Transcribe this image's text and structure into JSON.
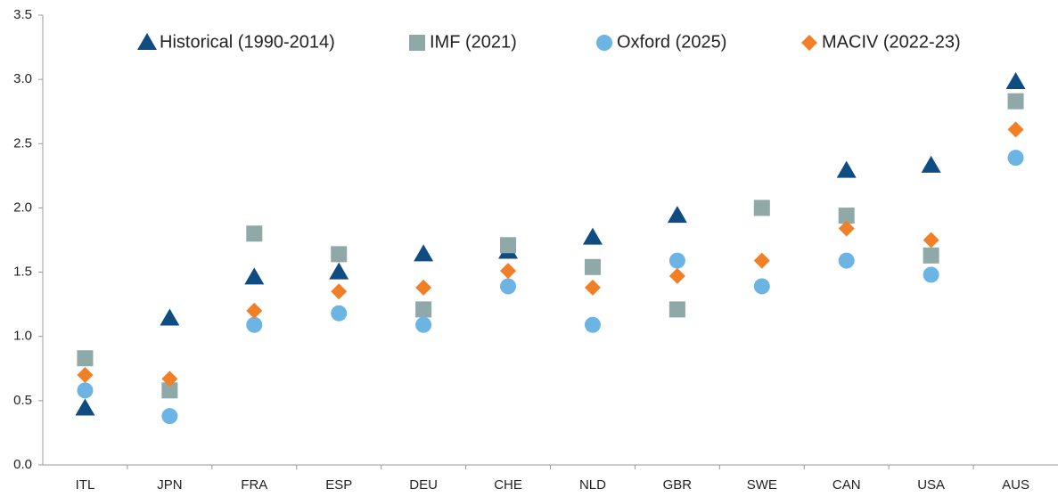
{
  "chart_data": {
    "type": "scatter",
    "categories": [
      "ITL",
      "JPN",
      "FRA",
      "ESP",
      "DEU",
      "CHE",
      "NLD",
      "GBR",
      "SWE",
      "CAN",
      "USA",
      "AUS"
    ],
    "series": [
      {
        "name": "Historical (1990-2014)",
        "color": "#0f4c81",
        "marker": "triangle",
        "values": [
          0.44,
          1.14,
          1.46,
          1.5,
          1.64,
          1.66,
          1.77,
          1.94,
          null,
          2.29,
          2.33,
          2.98
        ]
      },
      {
        "name": "IMF (2021)",
        "color": "#8fa8a8",
        "marker": "square",
        "values": [
          0.83,
          0.58,
          1.8,
          1.64,
          1.21,
          1.71,
          1.54,
          1.21,
          2.0,
          1.94,
          1.63,
          2.83
        ]
      },
      {
        "name": "Oxford (2025)",
        "color": "#6cb4e4",
        "marker": "circle",
        "values": [
          0.58,
          0.38,
          1.09,
          1.18,
          1.09,
          1.39,
          1.09,
          1.59,
          1.39,
          1.59,
          1.48,
          2.39
        ]
      },
      {
        "name": "MACIV (2022-23)",
        "color": "#f07f26",
        "marker": "diamond",
        "values": [
          0.7,
          0.67,
          1.2,
          1.35,
          1.38,
          1.51,
          1.38,
          1.47,
          1.59,
          1.84,
          1.75,
          2.61
        ]
      }
    ],
    "ylim": [
      0,
      3.5
    ],
    "yticks": [
      {
        "value": 0,
        "label": "0.0"
      },
      0.5,
      {
        "value": 1,
        "label": "1.0"
      },
      1.5,
      {
        "value": 2,
        "label": "2.0"
      },
      2.5,
      {
        "value": 3,
        "label": "3.0"
      },
      3.5
    ],
    "legend": "top"
  }
}
